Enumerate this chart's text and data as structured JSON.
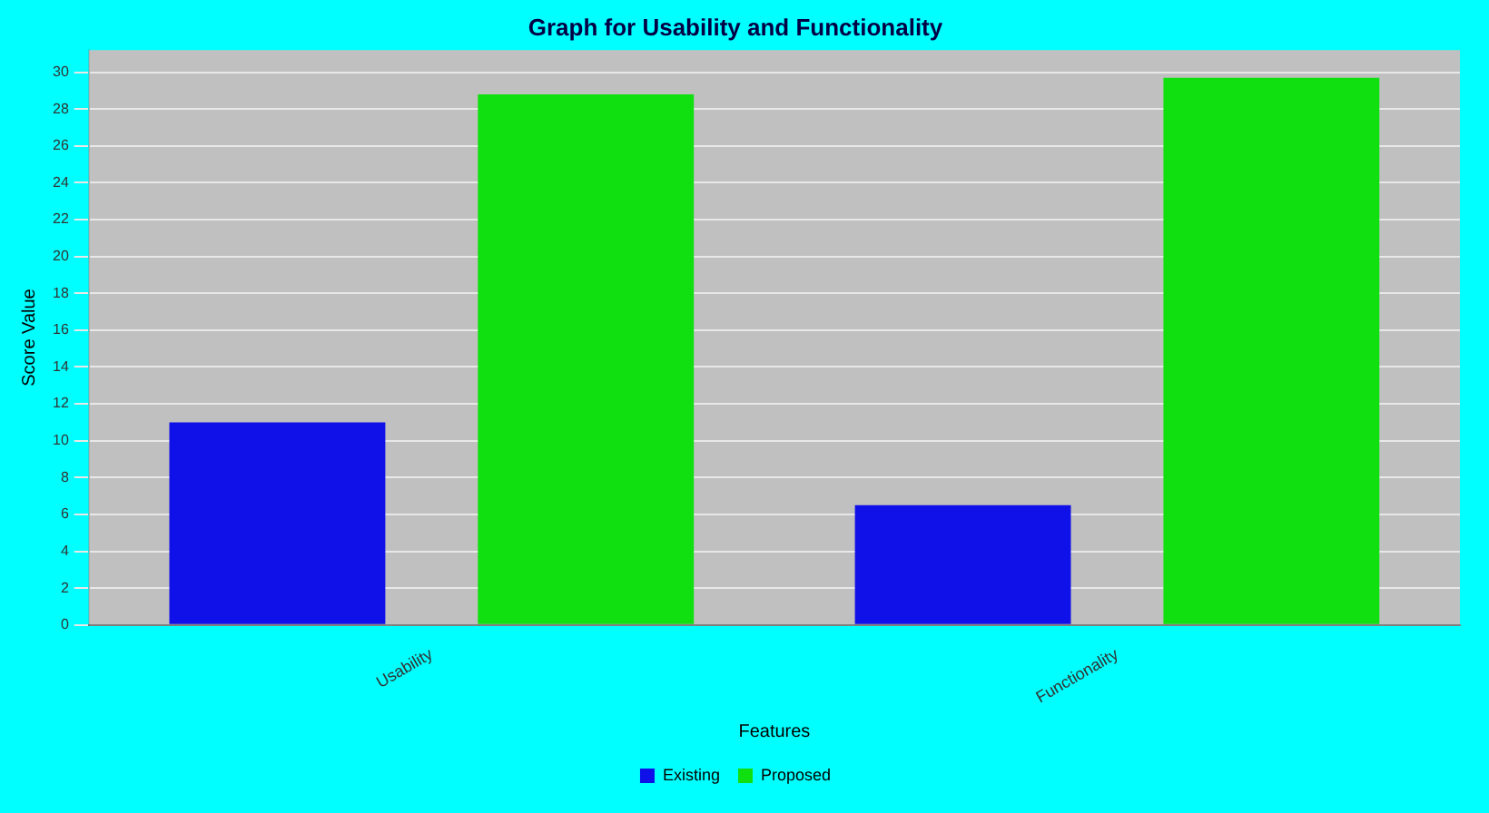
{
  "chart_data": {
    "type": "bar",
    "title": "Graph for Usability and Functionality",
    "xlabel": "Features",
    "ylabel": "Score Value",
    "categories": [
      "Usability",
      "Functionality"
    ],
    "series": [
      {
        "name": "Existing",
        "color": "#1010e8",
        "values": [
          11,
          6.5
        ]
      },
      {
        "name": "Proposed",
        "color": "#10e010",
        "values": [
          28.8,
          29.7
        ]
      }
    ],
    "ylim": [
      0,
      31.2
    ],
    "yticks": [
      0,
      2,
      4,
      6,
      8,
      10,
      12,
      14,
      16,
      18,
      20,
      22,
      24,
      26,
      28,
      30
    ],
    "grid": "y",
    "legend": "bottom"
  }
}
